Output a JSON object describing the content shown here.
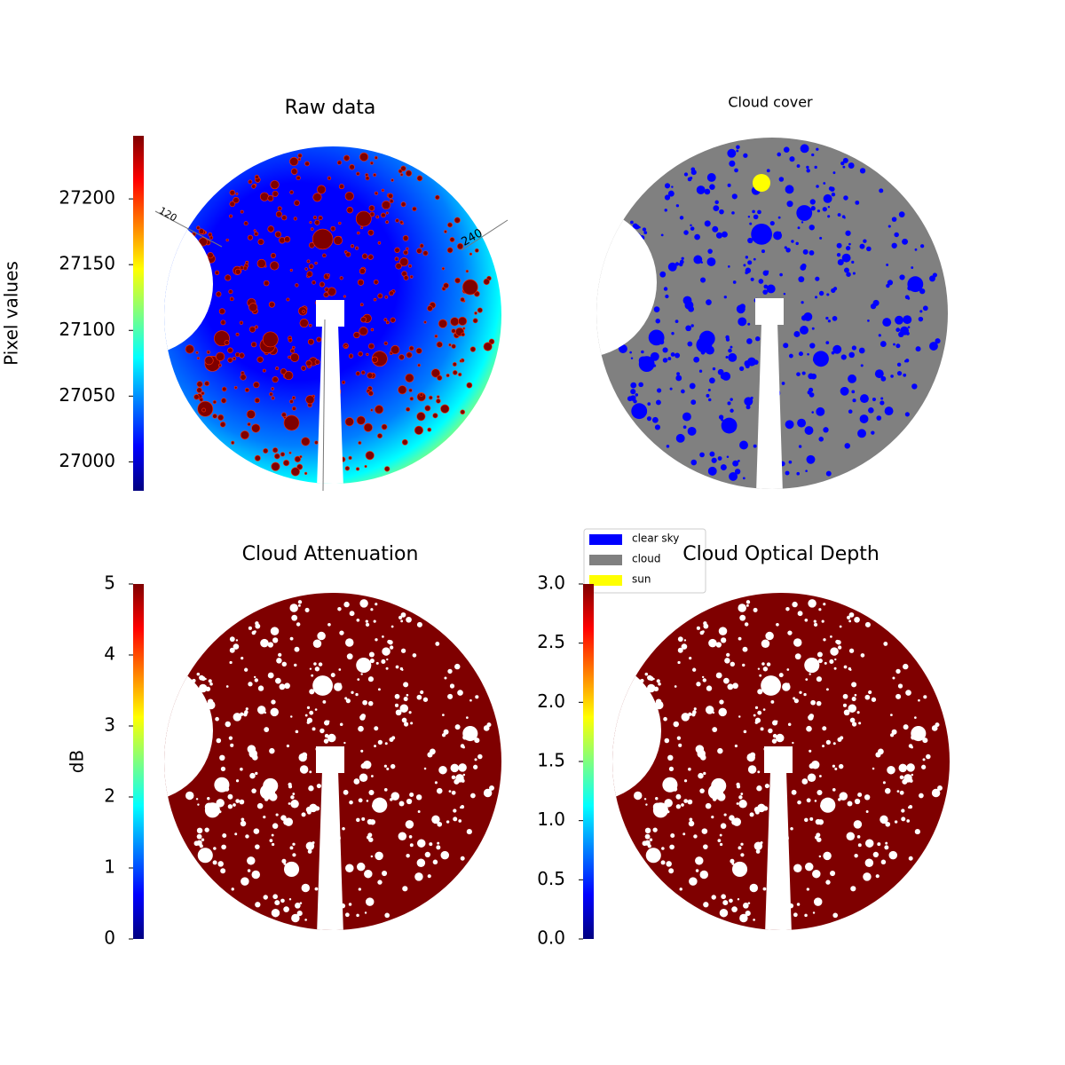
{
  "chart_data": [
    {
      "type": "image",
      "title": "Raw data",
      "colormap": "jet",
      "colorbar_label": "Pixel values",
      "ylim": [
        26978,
        27248
      ],
      "yticks": [
        27000,
        27050,
        27100,
        27150,
        27200
      ],
      "annotations": [
        "120",
        "240"
      ]
    },
    {
      "type": "image",
      "title": "Cloud cover",
      "series": [
        {
          "name": "clear sky",
          "color": "#0000ff"
        },
        {
          "name": "cloud",
          "color": "#808080"
        },
        {
          "name": "sun",
          "color": "#ffff00"
        }
      ]
    },
    {
      "type": "image",
      "title": "Cloud Attenuation",
      "colormap": "jet",
      "colorbar_label": "dB",
      "ylim": [
        0,
        5
      ],
      "yticks": [
        0,
        1,
        2,
        3,
        4,
        5
      ]
    },
    {
      "type": "image",
      "title": "Cloud Optical Depth",
      "colormap": "jet",
      "ylim": [
        0,
        3
      ],
      "yticks": [
        {
          "value": 0,
          "label": "0.0"
        },
        0.5,
        {
          "value": 1,
          "label": "1.0"
        },
        1.5,
        {
          "value": 2,
          "label": "2.0"
        },
        2.5,
        {
          "value": 3,
          "label": "3.0"
        }
      ]
    }
  ]
}
